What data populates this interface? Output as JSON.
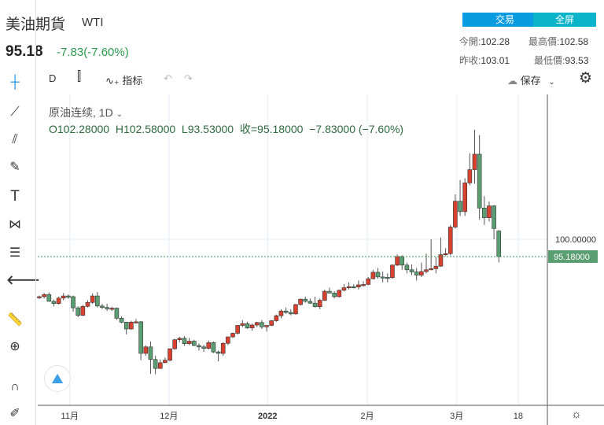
{
  "header": {
    "title": "美油期貨",
    "symbol": "WTI",
    "price": "95.18",
    "change": "-7.83(-7.60%)"
  },
  "buttons": {
    "trade": "交易",
    "fullscreen": "全屏"
  },
  "stats": {
    "open_label": "今開:",
    "open": "102.28",
    "high_label": "最高價:",
    "high": "102.58",
    "prev_label": "昨收:",
    "prev": "103.01",
    "low_label": "最低價:",
    "low": "93.53"
  },
  "toolbar": {
    "interval": "D",
    "indicators": "指标",
    "save": "保存"
  },
  "legend": {
    "name": "原油连续, 1D",
    "ohlc": "O102.28000  H102.58000  L93.53000  收=95.18000  −7.83000 (−7.60%)"
  },
  "colors": {
    "up": "#d9412f",
    "down": "#5a9e72",
    "accent": "#0b9be0"
  },
  "chart_data": {
    "type": "candlestick",
    "y_tick": "100.00000",
    "last_price_label": "95.18000",
    "last_price": 95.18,
    "x_ticks": [
      {
        "label": "11月",
        "index": 6.3
      },
      {
        "label": "12月",
        "index": 26.8
      },
      {
        "label": "2022",
        "index": 47.2
      },
      {
        "label": "2月",
        "index": 67.8
      },
      {
        "label": "3月",
        "index": 86.3
      },
      {
        "label": "18",
        "index": 99
      }
    ],
    "candles": [
      [
        83.8,
        84.3,
        83.4,
        84.0
      ],
      [
        84.0,
        85.0,
        83.5,
        84.6
      ],
      [
        84.6,
        85.2,
        82.6,
        82.7
      ],
      [
        82.7,
        83.2,
        81.3,
        82.1
      ],
      [
        82.1,
        84.0,
        81.8,
        83.6
      ],
      [
        83.6,
        85.0,
        83.0,
        84.2
      ],
      [
        84.2,
        84.6,
        83.4,
        84.0
      ],
      [
        84.0,
        84.3,
        79.8,
        80.9
      ],
      [
        80.9,
        81.3,
        78.3,
        78.8
      ],
      [
        78.8,
        81.7,
        78.6,
        81.3
      ],
      [
        81.3,
        83.0,
        81.0,
        82.4
      ],
      [
        82.4,
        84.9,
        82.0,
        84.2
      ],
      [
        84.2,
        85.3,
        81.0,
        81.4
      ],
      [
        81.4,
        82.0,
        80.5,
        81.0
      ],
      [
        81.0,
        82.0,
        80.0,
        80.6
      ],
      [
        80.6,
        81.2,
        80.0,
        80.8
      ],
      [
        80.8,
        81.0,
        77.5,
        78.0
      ],
      [
        78.0,
        78.5,
        76.6,
        76.9
      ],
      [
        76.9,
        77.0,
        73.5,
        75.0
      ],
      [
        75.0,
        77.3,
        74.8,
        76.9
      ],
      [
        76.9,
        77.8,
        76.5,
        77.0
      ],
      [
        77.0,
        77.2,
        66.3,
        68.2
      ],
      [
        68.2,
        70.5,
        67.5,
        70.0
      ],
      [
        70.0,
        71.5,
        62.5,
        66.5
      ],
      [
        66.5,
        67.5,
        62.4,
        64.0
      ],
      [
        64.0,
        66.5,
        64.0,
        65.6
      ],
      [
        65.6,
        67.0,
        65.5,
        66.3
      ],
      [
        66.3,
        69.0,
        66.0,
        69.5
      ],
      [
        69.5,
        72.3,
        69.2,
        72.0
      ],
      [
        72.0,
        72.8,
        71.3,
        72.4
      ],
      [
        72.4,
        73.0,
        70.3,
        70.9
      ],
      [
        70.9,
        72.5,
        70.5,
        71.6
      ],
      [
        71.6,
        72.0,
        70.2,
        70.4
      ],
      [
        70.4,
        71.0,
        69.0,
        70.0
      ],
      [
        70.0,
        70.6,
        68.6,
        69.6
      ],
      [
        69.6,
        71.8,
        69.3,
        71.2
      ],
      [
        71.2,
        71.5,
        68.3,
        68.6
      ],
      [
        68.6,
        69.0,
        66.0,
        68.2
      ],
      [
        68.2,
        71.3,
        67.5,
        71.0
      ],
      [
        71.0,
        72.8,
        70.5,
        72.8
      ],
      [
        72.8,
        74.0,
        72.5,
        73.8
      ],
      [
        73.8,
        76.0,
        73.5,
        76.0
      ],
      [
        76.0,
        77.5,
        75.5,
        76.5
      ],
      [
        76.5,
        77.0,
        75.0,
        75.3
      ],
      [
        75.3,
        76.5,
        74.5,
        76.1
      ],
      [
        76.1,
        77.0,
        75.5,
        76.8
      ],
      [
        76.8,
        77.5,
        75.0,
        75.6
      ],
      [
        75.6,
        76.0,
        74.3,
        76.0
      ],
      [
        76.0,
        77.5,
        75.8,
        77.3
      ],
      [
        77.3,
        79.0,
        77.0,
        78.7
      ],
      [
        78.7,
        80.5,
        78.0,
        80.0
      ],
      [
        80.0,
        81.0,
        79.2,
        79.6
      ],
      [
        79.6,
        80.5,
        78.8,
        79.2
      ],
      [
        79.2,
        82.0,
        79.0,
        81.8
      ],
      [
        81.8,
        83.5,
        81.5,
        83.3
      ],
      [
        83.3,
        84.0,
        82.3,
        82.7
      ],
      [
        82.7,
        83.5,
        82.0,
        82.2
      ],
      [
        82.2,
        84.0,
        81.0,
        81.2
      ],
      [
        81.2,
        83.5,
        80.5,
        83.0
      ],
      [
        83.0,
        86.0,
        82.8,
        85.5
      ],
      [
        85.5,
        86.5,
        85.0,
        85.0
      ],
      [
        85.0,
        85.5,
        83.5,
        84.0
      ],
      [
        84.0,
        86.0,
        83.8,
        85.8
      ],
      [
        85.8,
        87.5,
        85.5,
        86.5
      ],
      [
        86.5,
        88.0,
        86.0,
        86.8
      ],
      [
        86.8,
        87.5,
        86.3,
        86.7
      ],
      [
        86.7,
        88.5,
        86.0,
        87.3
      ],
      [
        87.3,
        88.3,
        86.8,
        87.4
      ],
      [
        87.4,
        89.5,
        87.2,
        89.0
      ],
      [
        89.0,
        91.5,
        88.8,
        90.8
      ],
      [
        90.8,
        92.0,
        89.0,
        89.5
      ],
      [
        89.5,
        91.0,
        88.0,
        89.4
      ],
      [
        89.4,
        90.5,
        88.0,
        89.3
      ],
      [
        89.3,
        93.0,
        89.0,
        92.8
      ],
      [
        92.8,
        95.8,
        92.5,
        95.2
      ],
      [
        95.2,
        95.5,
        91.5,
        92.8
      ],
      [
        92.8,
        93.5,
        90.5,
        91.5
      ],
      [
        91.5,
        93.0,
        90.0,
        90.9
      ],
      [
        90.9,
        92.0,
        88.5,
        90.0
      ],
      [
        90.0,
        93.5,
        89.5,
        91.0
      ],
      [
        91.0,
        96.0,
        90.5,
        91.5
      ],
      [
        91.5,
        100.0,
        91.5,
        91.8
      ],
      [
        91.8,
        95.0,
        90.5,
        92.5
      ],
      [
        92.5,
        100.5,
        92.3,
        95.7
      ],
      [
        95.7,
        97.5,
        95.3,
        96.0
      ],
      [
        96.0,
        104.0,
        95.5,
        103.4
      ],
      [
        103.4,
        112.5,
        103.0,
        110.6
      ],
      [
        110.6,
        116.5,
        106.5,
        107.7
      ],
      [
        107.7,
        117.0,
        106.5,
        115.7
      ],
      [
        115.7,
        124.0,
        115.0,
        119.4
      ],
      [
        119.4,
        130.5,
        115.5,
        123.7
      ],
      [
        123.7,
        129.0,
        105.5,
        108.7
      ],
      [
        108.7,
        112.0,
        104.0,
        106.0
      ],
      [
        106.0,
        110.5,
        105.0,
        109.3
      ],
      [
        109.3,
        109.5,
        100.0,
        103.01
      ],
      [
        102.28,
        102.58,
        93.53,
        95.18
      ]
    ]
  }
}
